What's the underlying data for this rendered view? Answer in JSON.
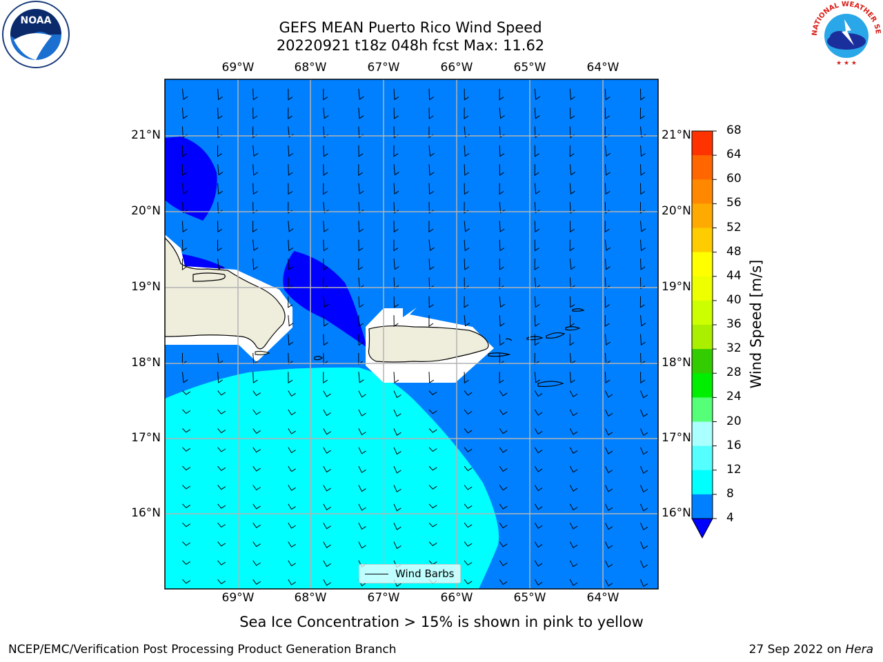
{
  "title_line1": "GEFS MEAN Puerto Rico Wind Speed",
  "title_line2": "20220921 t18z 048h fcst   Max: 11.62",
  "lon_labels": [
    "69°W",
    "68°W",
    "67°W",
    "66°W",
    "65°W",
    "64°W"
  ],
  "lat_labels": [
    "21°N",
    "20°N",
    "19°N",
    "18°N",
    "17°N",
    "16°N"
  ],
  "colorbar": {
    "title": "Wind Speed [m/s]",
    "ticks": [
      "68",
      "64",
      "60",
      "56",
      "52",
      "48",
      "44",
      "40",
      "36",
      "32",
      "28",
      "24",
      "20",
      "16",
      "12",
      "8",
      "4"
    ],
    "colors": [
      "#ff0000",
      "#ff3300",
      "#ff6600",
      "#ff8800",
      "#ffaa00",
      "#ffcc00",
      "#ffff00",
      "#eeff00",
      "#ccff00",
      "#aaee00",
      "#33cc00",
      "#00ee00",
      "#55ff77",
      "#aaffff",
      "#55ffff",
      "#00ffff",
      "#0080ff"
    ],
    "under_color": "#0000ff"
  },
  "legend_label": "Wind Barbs",
  "bottom_note": "Sea Ice Concentration > 15% is shown in pink to yellow",
  "footer_left": "NCEP/EMC/Verification Post Processing Product Generation Branch",
  "footer_right_prefix": "27 Sep 2022 on ",
  "footer_right_host": "Hera",
  "logos": {
    "noaa": "NOAA",
    "nws_ring": "NATIONAL WEATHER SERVICE"
  },
  "map_colors": {
    "ocean": "#0080ff",
    "light_wind": "#0000ff",
    "strong_wind": "#00ffff",
    "land": "#efeddc",
    "grid": "#b4b4b4"
  }
}
